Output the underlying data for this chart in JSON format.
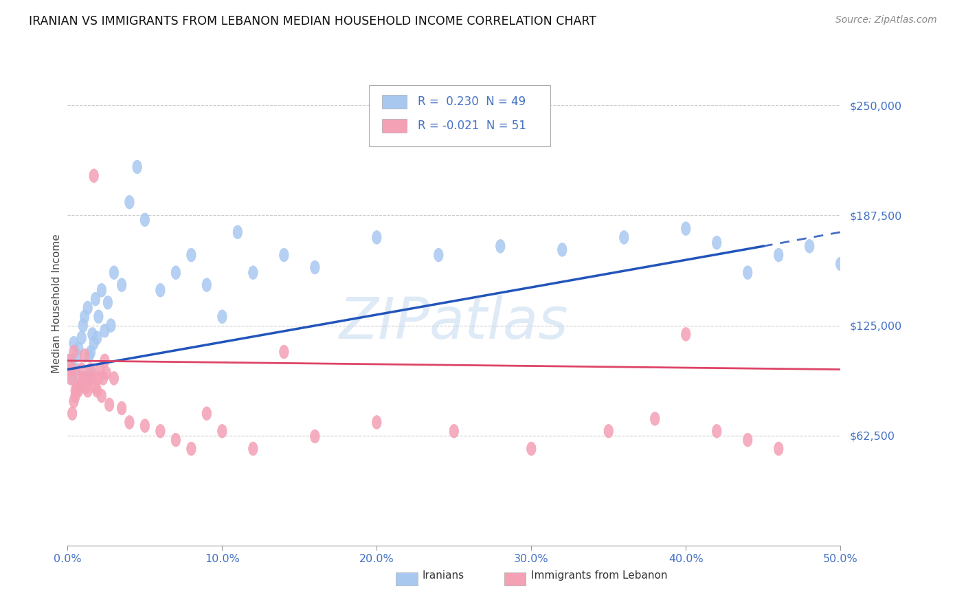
{
  "title": "IRANIAN VS IMMIGRANTS FROM LEBANON MEDIAN HOUSEHOLD INCOME CORRELATION CHART",
  "source": "Source: ZipAtlas.com",
  "ylabel": "Median Household Income",
  "y_ticks": [
    0,
    62500,
    125000,
    187500,
    250000
  ],
  "y_tick_labels": [
    "",
    "$62,500",
    "$125,000",
    "$187,500",
    "$250,000"
  ],
  "x_min": 0.0,
  "x_max": 0.5,
  "y_min": 0,
  "y_max": 275000,
  "legend_blue_R": "0.230",
  "legend_blue_N": "49",
  "legend_pink_R": "-0.021",
  "legend_pink_N": "51",
  "blue_color": "#A8C8F0",
  "pink_color": "#F4A0B5",
  "blue_line_color": "#2255BB",
  "pink_line_color": "#DD4466",
  "watermark": "ZIPatlas",
  "blue_line_x0": 0.0,
  "blue_line_y0": 100000,
  "blue_line_x1": 0.45,
  "blue_line_y1": 170000,
  "blue_line_dash_x0": 0.45,
  "blue_line_dash_y0": 170000,
  "blue_line_dash_x1": 0.5,
  "blue_line_dash_y1": 178000,
  "pink_line_x0": 0.0,
  "pink_line_y0": 105000,
  "pink_line_x1": 0.5,
  "pink_line_y1": 100000,
  "iranians_x": [
    0.002,
    0.003,
    0.004,
    0.005,
    0.006,
    0.007,
    0.008,
    0.009,
    0.01,
    0.011,
    0.012,
    0.013,
    0.014,
    0.015,
    0.016,
    0.017,
    0.018,
    0.019,
    0.02,
    0.022,
    0.024,
    0.026,
    0.028,
    0.03,
    0.035,
    0.04,
    0.045,
    0.05,
    0.06,
    0.07,
    0.08,
    0.09,
    0.1,
    0.11,
    0.12,
    0.14,
    0.16,
    0.2,
    0.24,
    0.28,
    0.32,
    0.36,
    0.4,
    0.42,
    0.44,
    0.46,
    0.48,
    0.5,
    0.015
  ],
  "iranians_y": [
    105000,
    95000,
    115000,
    100000,
    108000,
    112000,
    90000,
    118000,
    125000,
    130000,
    95000,
    135000,
    108000,
    98000,
    120000,
    115000,
    140000,
    118000,
    130000,
    145000,
    122000,
    138000,
    125000,
    155000,
    148000,
    195000,
    215000,
    185000,
    145000,
    155000,
    165000,
    148000,
    130000,
    178000,
    155000,
    165000,
    158000,
    175000,
    165000,
    170000,
    168000,
    175000,
    180000,
    172000,
    155000,
    165000,
    170000,
    160000,
    110000
  ],
  "lebanon_x": [
    0.001,
    0.002,
    0.003,
    0.004,
    0.005,
    0.006,
    0.007,
    0.008,
    0.009,
    0.01,
    0.011,
    0.012,
    0.013,
    0.014,
    0.015,
    0.016,
    0.017,
    0.018,
    0.019,
    0.02,
    0.021,
    0.022,
    0.023,
    0.024,
    0.025,
    0.027,
    0.03,
    0.035,
    0.04,
    0.05,
    0.06,
    0.07,
    0.08,
    0.09,
    0.1,
    0.12,
    0.14,
    0.16,
    0.2,
    0.25,
    0.3,
    0.35,
    0.38,
    0.4,
    0.42,
    0.44,
    0.46,
    0.002,
    0.003,
    0.004,
    0.005
  ],
  "lebanon_y": [
    105000,
    95000,
    100000,
    110000,
    85000,
    90000,
    88000,
    95000,
    100000,
    95000,
    108000,
    90000,
    88000,
    95000,
    100000,
    95000,
    210000,
    90000,
    88000,
    95000,
    100000,
    85000,
    95000,
    105000,
    98000,
    80000,
    95000,
    78000,
    70000,
    68000,
    65000,
    60000,
    55000,
    75000,
    65000,
    55000,
    110000,
    62000,
    70000,
    65000,
    55000,
    65000,
    72000,
    120000,
    65000,
    60000,
    55000,
    100000,
    75000,
    82000,
    88000
  ]
}
